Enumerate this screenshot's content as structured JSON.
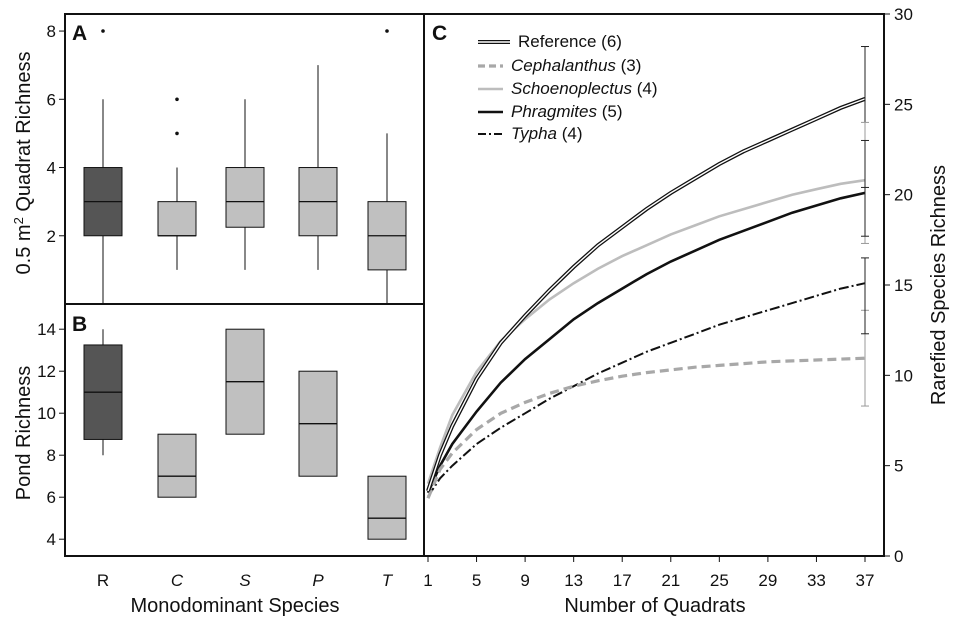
{
  "chart_data": [
    {
      "panel": "A",
      "type": "box",
      "ylabel": "0.5 m² Quadrat Richness",
      "ylim": [
        0,
        8.5
      ],
      "yticks": [
        2,
        4,
        6,
        8
      ],
      "categories": [
        "R",
        "C",
        "S",
        "P",
        "T"
      ],
      "boxes": [
        {
          "label": "R",
          "whisker_low": 0,
          "q1": 2,
          "median": 3,
          "q3": 4,
          "whisker_high": 6,
          "outliers": [
            8
          ],
          "color": "#555555"
        },
        {
          "label": "C",
          "whisker_low": 1,
          "q1": 2,
          "median": 2,
          "q3": 3,
          "whisker_high": 4,
          "outliers": [
            5,
            6
          ],
          "color": "#c0c0c0"
        },
        {
          "label": "S",
          "whisker_low": 1,
          "q1": 2.25,
          "median": 3,
          "q3": 4,
          "whisker_high": 6,
          "outliers": [],
          "color": "#c0c0c0"
        },
        {
          "label": "P",
          "whisker_low": 1,
          "q1": 2,
          "median": 3,
          "q3": 4,
          "whisker_high": 7,
          "outliers": [],
          "color": "#c0c0c0"
        },
        {
          "label": "T",
          "whisker_low": 0,
          "q1": 1,
          "median": 2,
          "q3": 3,
          "whisker_high": 5,
          "outliers": [
            8
          ],
          "color": "#c0c0c0"
        }
      ]
    },
    {
      "panel": "B",
      "type": "box",
      "ylabel": "Pond Richness",
      "xlabel": "Monodominant Species",
      "ylim": [
        3.2,
        15.2
      ],
      "yticks": [
        4,
        6,
        8,
        10,
        12,
        14
      ],
      "categories": [
        "R",
        "C",
        "S",
        "P",
        "T"
      ],
      "boxes": [
        {
          "label": "R",
          "whisker_low": 8,
          "q1": 8.75,
          "median": 11,
          "q3": 13.25,
          "whisker_high": 14,
          "color": "#555555"
        },
        {
          "label": "C",
          "whisker_low": 6,
          "q1": 6,
          "median": 7,
          "q3": 9,
          "whisker_high": 9,
          "color": "#c0c0c0"
        },
        {
          "label": "S",
          "whisker_low": 9,
          "q1": 9,
          "median": 11.5,
          "q3": 14,
          "whisker_high": 14,
          "color": "#c0c0c0"
        },
        {
          "label": "P",
          "whisker_low": 7,
          "q1": 7,
          "median": 9.5,
          "q3": 12,
          "whisker_high": 12,
          "color": "#c0c0c0"
        },
        {
          "label": "T",
          "whisker_low": 4,
          "q1": 4,
          "median": 5,
          "q3": 7,
          "whisker_high": 7,
          "color": "#c0c0c0"
        }
      ]
    },
    {
      "panel": "C",
      "type": "line",
      "xlabel": "Number of Quadrats",
      "ylabel": "Rarefied Species Richness",
      "xlim": [
        1,
        38.5
      ],
      "ylim": [
        0,
        30
      ],
      "xticks": [
        1,
        5,
        9,
        13,
        17,
        21,
        25,
        29,
        33,
        37
      ],
      "yticks": [
        0,
        5,
        10,
        15,
        20,
        25,
        30
      ],
      "x": [
        1,
        2,
        3,
        5,
        7,
        9,
        11,
        13,
        15,
        17,
        19,
        21,
        23,
        25,
        27,
        29,
        31,
        33,
        35,
        37
      ],
      "series": [
        {
          "name": "Reference",
          "count": "(6)",
          "style": "double",
          "color": "#111111",
          "values": [
            3.6,
            5.6,
            7.2,
            9.8,
            11.8,
            13.3,
            14.7,
            16.0,
            17.2,
            18.2,
            19.2,
            20.1,
            20.9,
            21.7,
            22.4,
            23.0,
            23.6,
            24.2,
            24.8,
            25.3
          ],
          "error": [
            20.4,
            28.2
          ]
        },
        {
          "name": "Cephalanthus",
          "count": "(3)",
          "style": "dashed",
          "color": "#a8a8a8",
          "values": [
            3.2,
            4.8,
            5.7,
            7.0,
            7.9,
            8.5,
            9.0,
            9.4,
            9.7,
            9.95,
            10.15,
            10.3,
            10.45,
            10.55,
            10.65,
            10.75,
            10.8,
            10.85,
            10.9,
            10.95
          ],
          "error": [
            8.3,
            13.6
          ]
        },
        {
          "name": "Schoenoplectus",
          "count": "(4)",
          "style": "solid",
          "color": "#bdbdbd",
          "values": [
            4.0,
            6.0,
            7.8,
            10.2,
            11.9,
            13.1,
            14.2,
            15.1,
            15.9,
            16.6,
            17.2,
            17.8,
            18.3,
            18.8,
            19.2,
            19.6,
            20.0,
            20.3,
            20.6,
            20.8
          ],
          "error": [
            17.3,
            24.0
          ]
        },
        {
          "name": "Phragmites",
          "count": "(5)",
          "style": "solid",
          "color": "#111111",
          "values": [
            3.5,
            5.0,
            6.2,
            8.0,
            9.6,
            10.9,
            12.0,
            13.1,
            14.0,
            14.8,
            15.6,
            16.3,
            16.9,
            17.5,
            18.0,
            18.5,
            19.0,
            19.4,
            19.8,
            20.1
          ],
          "error": [
            17.7,
            23.0
          ]
        },
        {
          "name": "Typha",
          "count": "(4)",
          "style": "dashdot",
          "color": "#111111",
          "values": [
            3.3,
            4.3,
            5.0,
            6.2,
            7.1,
            7.9,
            8.7,
            9.4,
            10.1,
            10.7,
            11.3,
            11.8,
            12.3,
            12.8,
            13.2,
            13.6,
            14.0,
            14.4,
            14.8,
            15.1
          ],
          "error": [
            12.3,
            16.5
          ]
        }
      ]
    }
  ],
  "panels": {
    "a": "A",
    "b": "B",
    "c": "C"
  }
}
